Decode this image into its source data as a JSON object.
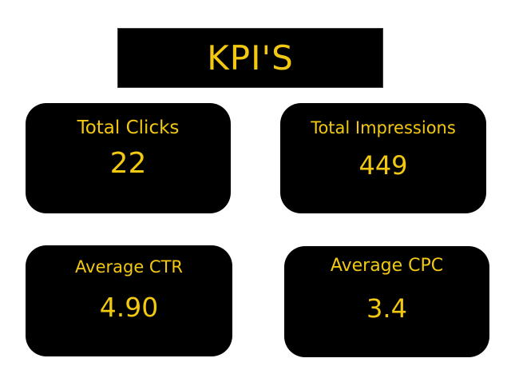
{
  "colors": {
    "background": "#ffffff",
    "card_background": "#000000",
    "accent_text": "#f2c811"
  },
  "header": {
    "title": "KPI'S"
  },
  "cards": [
    {
      "label": "Total Clicks",
      "value": "22"
    },
    {
      "label": "Total Impressions",
      "value": "449"
    },
    {
      "label": "Average CTR",
      "value": "4.90"
    },
    {
      "label": "Average CPC",
      "value": "3.4"
    }
  ]
}
